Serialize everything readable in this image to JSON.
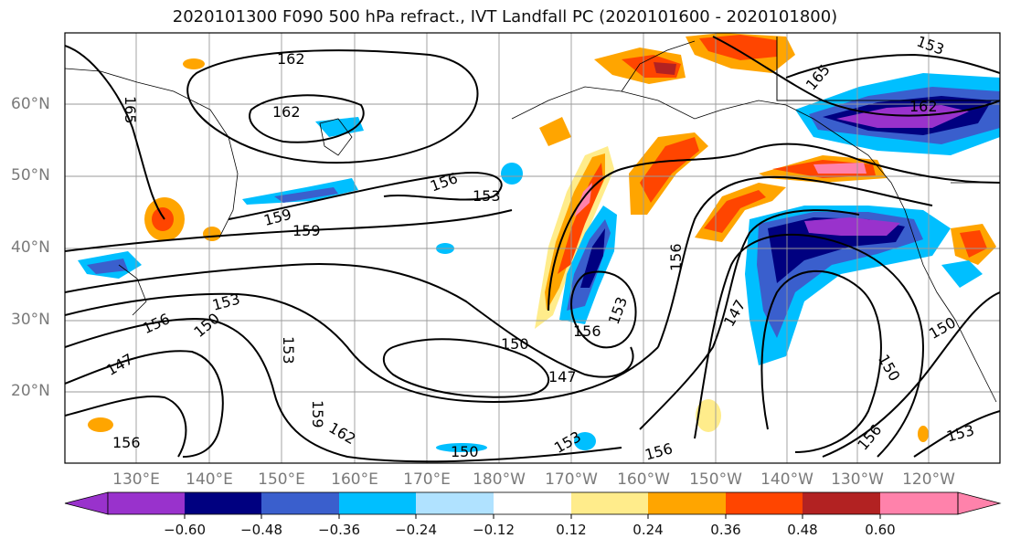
{
  "title": "2020101300 F090 500 hPa refract., IVT Landfall PC (2020101600 - 2020101800)",
  "lat_labels": [
    "60°N",
    "50°N",
    "40°N",
    "30°N",
    "20°N"
  ],
  "lon_labels": [
    "130°E",
    "140°E",
    "150°E",
    "160°E",
    "170°E",
    "180°W",
    "170°W",
    "160°W",
    "150°W",
    "140°W",
    "130°W",
    "120°W"
  ],
  "contour_labels": [
    "162",
    "165",
    "162",
    "165",
    "162",
    "156",
    "153",
    "159",
    "159",
    "153",
    "156",
    "150",
    "147",
    "153",
    "159",
    "162",
    "156",
    "150",
    "153",
    "147",
    "156",
    "153",
    "150",
    "156",
    "147",
    "150",
    "150",
    "156",
    "153",
    "153",
    "156"
  ],
  "colorbar": {
    "labels": [
      "−0.60",
      "−0.48",
      "−0.36",
      "−0.24",
      "−0.12",
      "0.12",
      "0.24",
      "0.36",
      "0.48",
      "0.60"
    ],
    "colors": [
      "#9932cc",
      "#000080",
      "#3a5fcd",
      "#00bfff",
      "#b0e2ff",
      "#ffffff",
      "#ffec8b",
      "#ffa500",
      "#ff4500",
      "#b22222",
      "#ff82ab"
    ]
  },
  "colors": {
    "purple": "#9932cc",
    "navy": "#000080",
    "blue": "#3a5fcd",
    "cyan": "#00bfff",
    "lightblue": "#b0e2ff",
    "yellow": "#ffec8b",
    "orange": "#ffa500",
    "redorange": "#ff4500",
    "firebrick": "#b22222",
    "pink": "#ff82ab"
  }
}
